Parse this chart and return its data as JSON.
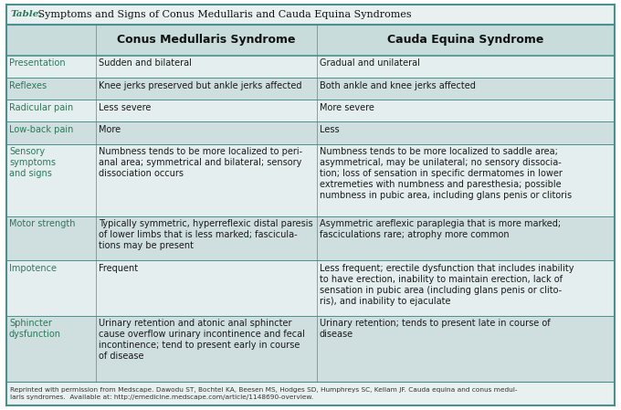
{
  "title_prefix": "Table.",
  "title_main": " Symptoms and Signs of Conus Medullaris and Cauda Equina Syndromes",
  "col_headers": [
    "Conus Medullaris Syndrome",
    "Cauda Equina Syndrome"
  ],
  "border_color": "#4a9090",
  "teal_color": "#2a7a5a",
  "header_text_color": "#111111",
  "body_text_color": "#1a1a1a",
  "label_text_color": "#2a7a5a",
  "title_bg": "#e8f0f0",
  "header_bg": "#c8dcdc",
  "shaded_bg": "#cfdede",
  "unshaded_bg": "#e4eeee",
  "footer_bg": "#e8f0f0",
  "footer_text": "Reprinted with permission from Medscape. Dawodu ST, Bochtel KA, Beesen MS, Hodges SD, Humphreys SC, Kellam JF. Cauda equina and conus medul-\nlaris syndromes.  Available at: http://emedicine.medscape.com/article/1148690-overview.",
  "rows": [
    {
      "label": "Presentation",
      "col1": "Sudden and bilateral",
      "col2": "Gradual and unilateral",
      "shaded": false
    },
    {
      "label": "Reflexes",
      "col1": "Knee jerks preserved but ankle jerks affected",
      "col2": "Both ankle and knee jerks affected",
      "shaded": true
    },
    {
      "label": "Radicular pain",
      "col1": "Less severe",
      "col2": "More severe",
      "shaded": false
    },
    {
      "label": "Low-back pain",
      "col1": "More",
      "col2": "Less",
      "shaded": true
    },
    {
      "label": "Sensory\nsymptoms\nand signs",
      "col1": "Numbness tends to be more localized to peri-\nanal area; symmetrical and bilateral; sensory\ndissociation occurs",
      "col2": "Numbness tends to be more localized to saddle area;\nasymmetrical, may be unilateral; no sensory dissocia-\ntion; loss of sensation in specific dermatomes in lower\nextremeties with numbness and paresthesia; possible\nnumbness in pubic area, including glans penis or clitoris",
      "shaded": false
    },
    {
      "label": "Motor strength",
      "col1": "Typically symmetric, hyperreflexic distal paresis\nof lower limbs that is less marked; fascicula-\ntions may be present",
      "col2": "Asymmetric areflexic paraplegia that is more marked;\nfasciculations rare; atrophy more common",
      "shaded": true
    },
    {
      "label": "Impotence",
      "col1": "Frequent",
      "col2": "Less frequent; erectile dysfunction that includes inability\nto have erection, inability to maintain erection, lack of\nsensation in pubic area (including glans penis or clito-\nris), and inability to ejaculate",
      "shaded": false
    },
    {
      "label": "Sphincter\ndysfunction",
      "col1": "Urinary retention and atonic anal sphincter\ncause overflow urinary incontinence and fecal\nincontinence; tend to present early in course\nof disease",
      "col2": "Urinary retention; tends to present late in course of\ndisease",
      "shaded": true
    }
  ]
}
